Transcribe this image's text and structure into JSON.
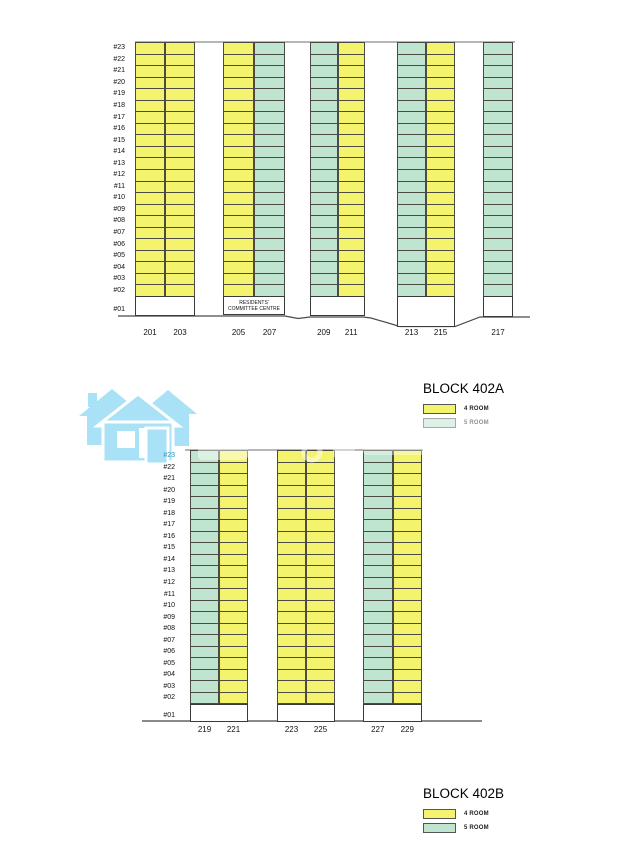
{
  "colors": {
    "room4": "#f3f36d",
    "room5": "#bfe5d1",
    "watermark_blue": "#a9e2f7"
  },
  "diagrams": [
    {
      "block": "402A",
      "floors": [
        "#23",
        "#22",
        "#21",
        "#20",
        "#19",
        "#18",
        "#17",
        "#16",
        "#15",
        "#14",
        "#13",
        "#12",
        "#11",
        "#10",
        "#09",
        "#08",
        "#07",
        "#06",
        "#05",
        "#04",
        "#03",
        "#02"
      ],
      "ground_floor": "#01",
      "stacks": [
        {
          "units": [
            {
              "no": "201",
              "type": "room4"
            },
            {
              "no": "203",
              "type": "room4"
            }
          ]
        },
        {
          "units": [
            {
              "no": "205",
              "type": "room4"
            },
            {
              "no": "207",
              "type": "room5"
            }
          ],
          "void_label": [
            "RESIDENTS'",
            "COMMITTEE CENTRE"
          ]
        },
        {
          "units": [
            {
              "no": "209",
              "type": "room5"
            },
            {
              "no": "211",
              "type": "room4"
            }
          ]
        },
        {
          "units": [
            {
              "no": "213",
              "type": "room5"
            },
            {
              "no": "215",
              "type": "room4"
            }
          ]
        },
        {
          "units": [
            {
              "no": "217",
              "type": "room5"
            }
          ]
        }
      ],
      "legend": {
        "title": "BLOCK 402A",
        "items": [
          {
            "label": "4 ROOM",
            "type": "room4"
          },
          {
            "label": "5 ROOM",
            "type": "room5"
          }
        ]
      }
    },
    {
      "block": "402B",
      "floors": [
        "#23",
        "#22",
        "#21",
        "#20",
        "#19",
        "#18",
        "#17",
        "#16",
        "#15",
        "#14",
        "#13",
        "#12",
        "#11",
        "#10",
        "#09",
        "#08",
        "#07",
        "#06",
        "#05",
        "#04",
        "#03",
        "#02"
      ],
      "ground_floor": "#01",
      "stacks": [
        {
          "units": [
            {
              "no": "219",
              "type": "room5"
            },
            {
              "no": "221",
              "type": "room4"
            }
          ]
        },
        {
          "units": [
            {
              "no": "223",
              "type": "room4"
            },
            {
              "no": "225",
              "type": "room4"
            }
          ]
        },
        {
          "units": [
            {
              "no": "227",
              "type": "room5"
            },
            {
              "no": "229",
              "type": "room4"
            }
          ]
        }
      ],
      "legend": {
        "title": "BLOCK 402B",
        "items": [
          {
            "label": "4 ROOM",
            "type": "room4"
          },
          {
            "label": "5 ROOM",
            "type": "room5"
          }
        ]
      }
    }
  ]
}
